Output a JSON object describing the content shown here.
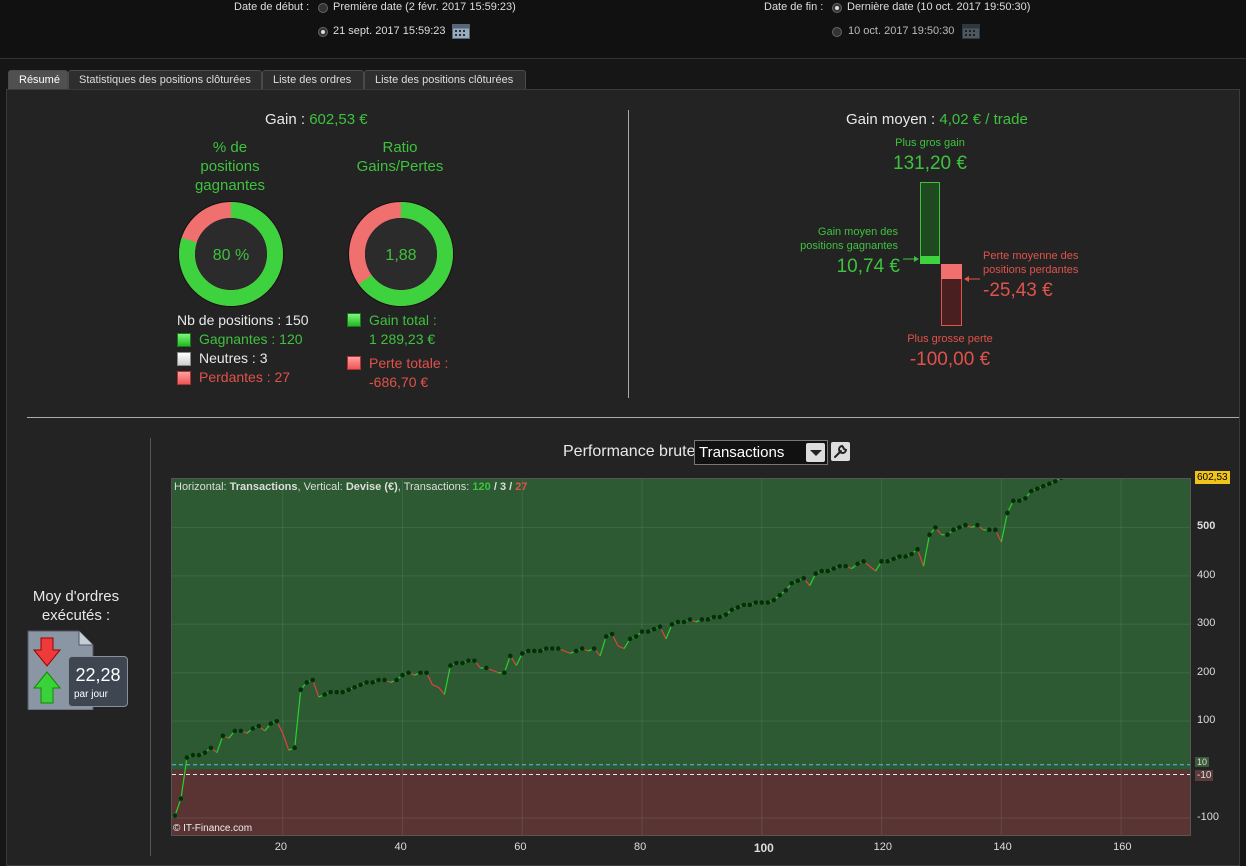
{
  "header": {
    "start_label": "Date de début :",
    "start_option1": "Première date (2 févr. 2017 15:59:23)",
    "start_option2": "21 sept. 2017 15:59:23",
    "end_label": "Date de fin :",
    "end_option1": "Dernière date (10 oct. 2017 19:50:30)",
    "end_option2": "10 oct. 2017 19:50:30"
  },
  "tabs": [
    "Résumé",
    "Statistiques des positions clôturées",
    "Liste des ordres",
    "Liste des positions clôturées"
  ],
  "summary": {
    "gain_label": "Gain :",
    "gain_value": "602,53 €",
    "pct_title": [
      "% de",
      "positions",
      "gagnantes"
    ],
    "pct_value": "80 %",
    "pct_fraction": 0.8,
    "ratio_title": [
      "Ratio",
      "Gains/Pertes"
    ],
    "ratio_value": "1,88",
    "ratio_fraction": 0.65,
    "nb_label": "Nb de positions : 150",
    "gagnantes": "Gagnantes : 120",
    "neutres": "Neutres : 3",
    "perdantes": "Perdantes : 27",
    "gain_total_label": "Gain total :",
    "gain_total_value": "1 289,23 €",
    "perte_totale_label": "Perte totale :",
    "perte_totale_value": "-686,70 €"
  },
  "average": {
    "title_label": "Gain moyen :",
    "title_value": "4,02 € / trade",
    "plus_gros_gain_label": "Plus gros gain",
    "plus_gros_gain_value": "131,20 €",
    "gain_moyen_label": [
      "Gain moyen des",
      "positions gagnantes"
    ],
    "gain_moyen_value": "10,74 €",
    "perte_moyenne_label": [
      "Perte moyenne des",
      "positions perdantes"
    ],
    "perte_moyenne_value": "-25,43 €",
    "plus_grosse_perte_label": "Plus grosse perte",
    "plus_grosse_perte_value": "-100,00 €"
  },
  "orders": {
    "title": [
      "Moy d'ordres",
      "exécutés :"
    ],
    "value": "22,28",
    "unit": "par jour"
  },
  "performance": {
    "title": "Performance brute",
    "selected": "Transactions",
    "info_prefix": "Horizontal:",
    "info_h": "Transactions",
    "info_mid": ", Vertical:",
    "info_v": "Devise (€)",
    "info_tr": ", Transactions:",
    "info_win": "120",
    "info_sep1": " / ",
    "info_neutral": "3",
    "info_sep2": " / ",
    "info_loss": "27",
    "watermark": "© IT-Finance.com",
    "last_value_label": "602,53",
    "threshold_pos": "10",
    "threshold_neg": "-10"
  },
  "colors": {
    "green": "#3ec23e",
    "red": "#e0524a",
    "plot_pos": "#2d5a32",
    "plot_neg": "#5a3432",
    "badge": "#f0c419"
  },
  "chart_data": {
    "type": "line",
    "xlabel": "",
    "ylabel": "",
    "xlim": [
      0,
      170
    ],
    "ylim": [
      -135,
      600
    ],
    "x_ticks": [
      20,
      40,
      60,
      80,
      100,
      120,
      140,
      160
    ],
    "y_ticks": [
      -100,
      100,
      200,
      300,
      400,
      500
    ],
    "series": [
      {
        "values": [
          [
            0,
            -5
          ],
          [
            1,
            -98
          ],
          [
            2,
            -95
          ],
          [
            3,
            -60
          ],
          [
            4,
            25
          ],
          [
            5,
            30
          ],
          [
            6,
            30
          ],
          [
            7,
            35
          ],
          [
            8,
            45
          ],
          [
            9,
            35
          ],
          [
            10,
            70
          ],
          [
            11,
            65
          ],
          [
            12,
            80
          ],
          [
            13,
            80
          ],
          [
            14,
            75
          ],
          [
            15,
            85
          ],
          [
            16,
            90
          ],
          [
            17,
            80
          ],
          [
            18,
            95
          ],
          [
            19,
            100
          ],
          [
            20,
            75
          ],
          [
            21,
            40
          ],
          [
            22,
            45
          ],
          [
            23,
            165
          ],
          [
            24,
            180
          ],
          [
            25,
            185
          ],
          [
            26,
            150
          ],
          [
            27,
            155
          ],
          [
            28,
            160
          ],
          [
            29,
            160
          ],
          [
            30,
            160
          ],
          [
            31,
            165
          ],
          [
            32,
            170
          ],
          [
            33,
            175
          ],
          [
            34,
            180
          ],
          [
            35,
            180
          ],
          [
            36,
            185
          ],
          [
            37,
            185
          ],
          [
            38,
            180
          ],
          [
            39,
            185
          ],
          [
            40,
            195
          ],
          [
            41,
            200
          ],
          [
            42,
            195
          ],
          [
            43,
            200
          ],
          [
            44,
            200
          ],
          [
            45,
            175
          ],
          [
            46,
            170
          ],
          [
            47,
            155
          ],
          [
            48,
            215
          ],
          [
            49,
            220
          ],
          [
            50,
            220
          ],
          [
            51,
            225
          ],
          [
            52,
            225
          ],
          [
            53,
            210
          ],
          [
            54,
            210
          ],
          [
            55,
            205
          ],
          [
            56,
            200
          ],
          [
            57,
            200
          ],
          [
            58,
            235
          ],
          [
            59,
            215
          ],
          [
            60,
            240
          ],
          [
            61,
            245
          ],
          [
            62,
            245
          ],
          [
            63,
            245
          ],
          [
            64,
            250
          ],
          [
            65,
            250
          ],
          [
            66,
            250
          ],
          [
            67,
            245
          ],
          [
            68,
            240
          ],
          [
            69,
            245
          ],
          [
            70,
            250
          ],
          [
            71,
            245
          ],
          [
            72,
            250
          ],
          [
            73,
            235
          ],
          [
            74,
            275
          ],
          [
            75,
            280
          ],
          [
            76,
            255
          ],
          [
            77,
            250
          ],
          [
            78,
            270
          ],
          [
            79,
            275
          ],
          [
            80,
            285
          ],
          [
            81,
            285
          ],
          [
            82,
            290
          ],
          [
            83,
            295
          ],
          [
            84,
            270
          ],
          [
            85,
            300
          ],
          [
            86,
            305
          ],
          [
            87,
            305
          ],
          [
            88,
            310
          ],
          [
            89,
            305
          ],
          [
            90,
            310
          ],
          [
            91,
            310
          ],
          [
            92,
            315
          ],
          [
            93,
            315
          ],
          [
            94,
            320
          ],
          [
            95,
            330
          ],
          [
            96,
            335
          ],
          [
            97,
            340
          ],
          [
            98,
            340
          ],
          [
            99,
            345
          ],
          [
            100,
            345
          ],
          [
            101,
            345
          ],
          [
            102,
            350
          ],
          [
            103,
            360
          ],
          [
            104,
            370
          ],
          [
            105,
            385
          ],
          [
            106,
            390
          ],
          [
            107,
            395
          ],
          [
            108,
            380
          ],
          [
            109,
            405
          ],
          [
            110,
            410
          ],
          [
            111,
            410
          ],
          [
            112,
            415
          ],
          [
            113,
            420
          ],
          [
            114,
            420
          ],
          [
            115,
            415
          ],
          [
            116,
            425
          ],
          [
            117,
            430
          ],
          [
            118,
            420
          ],
          [
            119,
            410
          ],
          [
            120,
            430
          ],
          [
            121,
            430
          ],
          [
            122,
            435
          ],
          [
            123,
            440
          ],
          [
            124,
            440
          ],
          [
            125,
            445
          ],
          [
            126,
            455
          ],
          [
            127,
            420
          ],
          [
            128,
            485
          ],
          [
            129,
            500
          ],
          [
            130,
            485
          ],
          [
            131,
            485
          ],
          [
            132,
            495
          ],
          [
            133,
            500
          ],
          [
            134,
            505
          ],
          [
            135,
            500
          ],
          [
            136,
            505
          ],
          [
            137,
            495
          ],
          [
            138,
            495
          ],
          [
            139,
            495
          ],
          [
            140,
            470
          ],
          [
            141,
            530
          ],
          [
            142,
            555
          ],
          [
            143,
            555
          ],
          [
            144,
            560
          ],
          [
            145,
            575
          ],
          [
            146,
            580
          ],
          [
            147,
            585
          ],
          [
            148,
            590
          ],
          [
            149,
            595
          ],
          [
            150,
            602.53
          ]
        ]
      }
    ]
  }
}
